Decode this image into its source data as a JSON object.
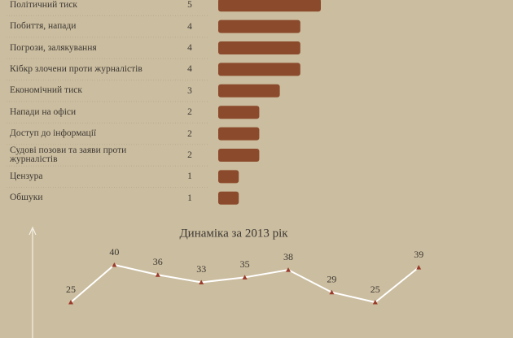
{
  "chart_data": [
    {
      "type": "bar",
      "orientation": "horizontal",
      "categories": [
        "Політичний тиск",
        "Побиття, напади",
        "Погрози, залякування",
        "Кібкр злочени проти журналістів",
        "Економічний тиск",
        "Напади на офіси",
        "Доступ до інформації",
        "Судові позови та заяви проти журналістів",
        "Цензура",
        "Обшуки"
      ],
      "values": [
        5,
        4,
        4,
        4,
        3,
        2,
        2,
        2,
        1,
        1
      ],
      "color": "#8b4a2b"
    },
    {
      "type": "line",
      "title": "Динаміка за 2013 рік",
      "values": [
        25,
        40,
        36,
        33,
        35,
        38,
        29,
        25,
        39
      ],
      "color": "#ffffff",
      "marker_color": "#9a3b2a"
    }
  ]
}
